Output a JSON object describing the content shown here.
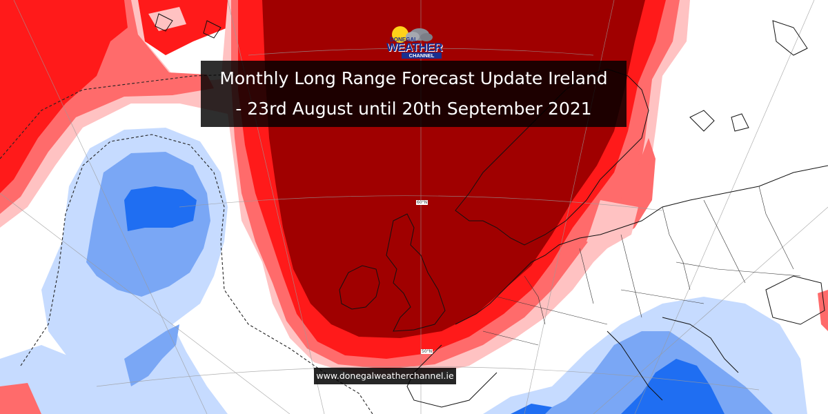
{
  "title": {
    "line1": "Monthly Long Range Forecast Update Ireland",
    "line2": "- 23rd August until 20th September 2021"
  },
  "website": "www.donegalweatherchannel.ie",
  "logo": {
    "line1": "DONEGAL",
    "line2": "WEATHER",
    "line3": "CHANNEL"
  },
  "latitude_labels": [
    "60°N",
    "50°N"
  ],
  "colors": {
    "warm_strong": "#a00000",
    "warm_mid": "#ff1a1a",
    "warm_light": "#ff6b6b",
    "warm_faint": "#ffc2c2",
    "cool_faint": "#c6dbff",
    "cool_light": "#7aa7f5",
    "cool_strong": "#1f6ef2",
    "neutral": "#ffffff"
  }
}
